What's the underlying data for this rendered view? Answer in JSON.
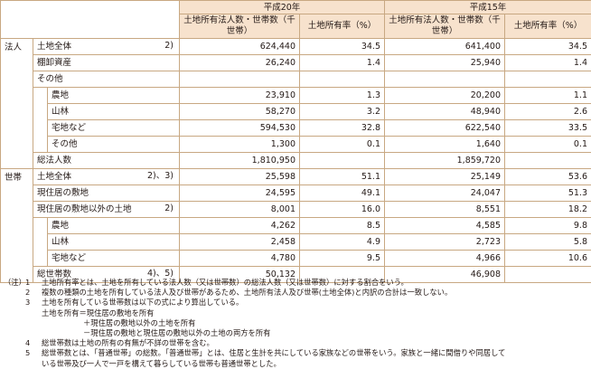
{
  "header": {
    "year20": "平成20年",
    "year15": "平成15年",
    "col_count": "土地所有法人数・世帯数（千世帯）",
    "col_rate": "土地所有率（%）"
  },
  "corp": {
    "group_label": "法人",
    "rows": [
      {
        "label": "土地全体",
        "note": "2)",
        "v20": "624,440",
        "r20": "34.5",
        "v15": "641,400",
        "r15": "34.5"
      },
      {
        "label": "棚卸資産",
        "note": "",
        "v20": "26,240",
        "r20": "1.4",
        "v15": "25,940",
        "r15": "1.4"
      },
      {
        "label": "その他",
        "note": "",
        "v20": "",
        "r20": "",
        "v15": "",
        "r15": ""
      }
    ],
    "sub_rows": [
      {
        "label": "農地",
        "v20": "23,910",
        "r20": "1.3",
        "v15": "20,200",
        "r15": "1.1"
      },
      {
        "label": "山林",
        "v20": "58,270",
        "r20": "3.2",
        "v15": "48,940",
        "r15": "2.6"
      },
      {
        "label": "宅地など",
        "v20": "594,530",
        "r20": "32.8",
        "v15": "622,540",
        "r15": "33.5"
      },
      {
        "label": "その他",
        "v20": "1,300",
        "r20": "0.1",
        "v15": "1,640",
        "r15": "0.1"
      }
    ],
    "total": {
      "label": "総法人数",
      "note": "",
      "v20": "1,810,950",
      "r20": "",
      "v15": "1,859,720",
      "r15": ""
    }
  },
  "household": {
    "group_label": "世帯",
    "rows": [
      {
        "label": "土地全体",
        "note": "2)、3)",
        "v20": "25,598",
        "r20": "51.1",
        "v15": "25,149",
        "r15": "53.6"
      },
      {
        "label": "現住居の敷地",
        "note": "",
        "v20": "24,595",
        "r20": "49.1",
        "v15": "24,047",
        "r15": "51.3"
      },
      {
        "label": "現住居の敷地以外の土地",
        "note": "2)",
        "v20": "8,001",
        "r20": "16.0",
        "v15": "8,551",
        "r15": "18.2"
      }
    ],
    "sub_rows": [
      {
        "label": "農地",
        "v20": "4,262",
        "r20": "8.5",
        "v15": "4,585",
        "r15": "9.8"
      },
      {
        "label": "山林",
        "v20": "2,458",
        "r20": "4.9",
        "v15": "2,723",
        "r15": "5.8"
      },
      {
        "label": "宅地など",
        "v20": "4,780",
        "r20": "9.5",
        "v15": "4,966",
        "r15": "10.6"
      }
    ],
    "total": {
      "label": "総世帯数",
      "note": "4)、5)",
      "v20": "50,132",
      "r20": "",
      "v15": "46,908",
      "r15": ""
    }
  },
  "notes": {
    "prefix": "（注）",
    "items": [
      {
        "num": "1",
        "text": "土地所有率とは、土地を所有している法人数（又は世帯数）の総法人数（又は世帯数）に対する割合をいう。"
      },
      {
        "num": "2",
        "text": "複数の種類の土地を所有している法人及び世帯があるため、土地所有法人及び世帯(土地全体)と内訳の合計は一致しない。"
      },
      {
        "num": "3",
        "text": "土地を所有している世帯数は以下の式により算出している。"
      }
    ],
    "formula": [
      "土地を所有＝現住居の敷地を所有",
      "＋現住居の敷地以外の土地を所有",
      "－現住居の敷地と現住居の敷地以外の土地の両方を所有"
    ],
    "items2": [
      {
        "num": "4",
        "text": "総世帯数は土地の所有の有無が不詳の世帯を含む。"
      },
      {
        "num": "5",
        "text": "総世帯数とは、「普通世帯」の総数。「普通世帯」とは、住居と生計を共にしている家族などの世帯をいう。家族と一緒に間借りや同居して"
      }
    ],
    "continuation": "いる世帯及び一人で一戸を構えて暮らしている世帯も普通世帯とした。"
  }
}
